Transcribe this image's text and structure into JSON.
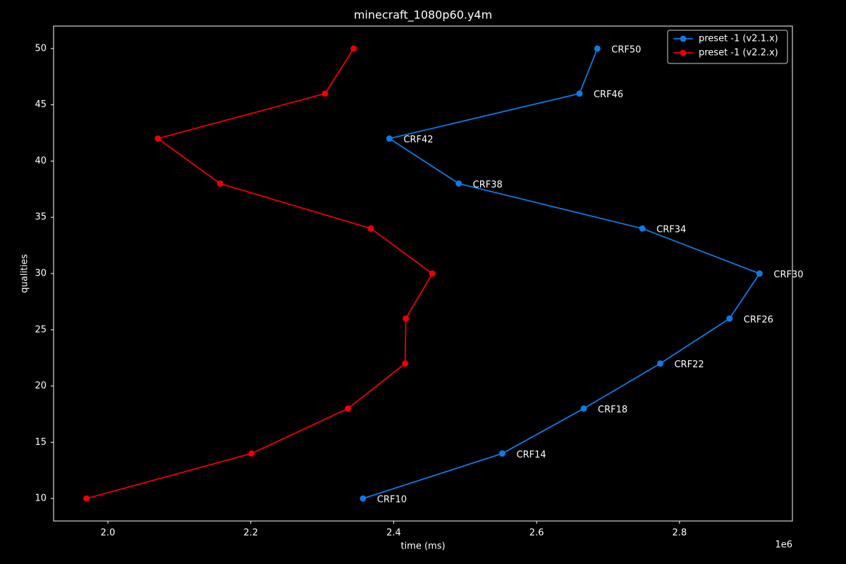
{
  "chart_data": {
    "type": "line",
    "title": "minecraft_1080p60.y4m",
    "x_label": "time (ms)",
    "y_label": "qualities",
    "x_offset_text": "1e6",
    "xlim": [
      1924000,
      2958000
    ],
    "ylim": [
      8,
      52
    ],
    "xticks": [
      {
        "value": 2000000,
        "label": "2.0"
      },
      {
        "value": 2200000,
        "label": "2.2"
      },
      {
        "value": 2400000,
        "label": "2.4"
      },
      {
        "value": 2600000,
        "label": "2.6"
      },
      {
        "value": 2800000,
        "label": "2.8"
      }
    ],
    "yticks": [
      10,
      15,
      20,
      25,
      30,
      35,
      40,
      45,
      50
    ],
    "legend": "upper right",
    "series": [
      {
        "name": "preset -1 (v2.1.x)",
        "color": "#0f7ae5",
        "x": [
          2357000,
          2552000,
          2666000,
          2773000,
          2870000,
          2912000,
          2748000,
          2491000,
          2394000,
          2660000,
          2685000
        ],
        "values": [
          10,
          14,
          18,
          22,
          26,
          30,
          34,
          38,
          42,
          46,
          50
        ],
        "annotations": [
          "CRF10",
          "CRF14",
          "CRF18",
          "CRF22",
          "CRF26",
          "CRF30",
          "CRF34",
          "CRF38",
          "CRF42",
          "CRF46",
          "CRF50"
        ]
      },
      {
        "name": "preset -1 (v2.2.x)",
        "color": "#ee0000",
        "x": [
          1970000,
          2201000,
          2336000,
          2416000,
          2417000,
          2454000,
          2368000,
          2157000,
          2070000,
          2304000,
          2344000
        ],
        "values": [
          10,
          14,
          18,
          22,
          26,
          30,
          34,
          38,
          42,
          46,
          50
        ]
      }
    ]
  }
}
